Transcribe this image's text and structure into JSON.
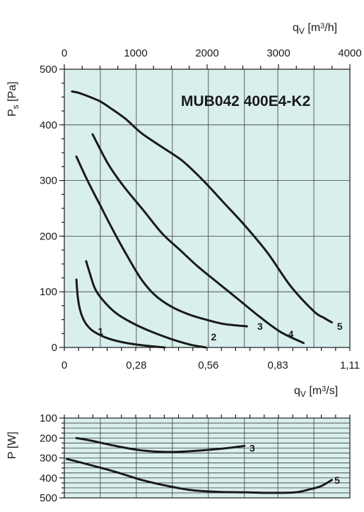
{
  "colors": {
    "plot_background": "#d9efee",
    "curve": "#1a1a1a"
  },
  "top_axis": {
    "label_main": "q",
    "label_sub": "V",
    "label_unit_pre": " [m",
    "label_unit_sup": "3",
    "label_unit_post": "/h]",
    "ticks": [
      "0",
      "1000",
      "2000",
      "3000",
      "4000"
    ],
    "max": 4000
  },
  "chart_data": [
    {
      "type": "line",
      "title": "MUB042 400E4-K2",
      "xlabel": "q_V [m3/s]",
      "ylabel": "P_s [Pa]",
      "x_tick_labels": [
        "0",
        "0,28",
        "0,56",
        "0,83",
        "1,11"
      ],
      "y_tick_labels": [
        "0",
        "100",
        "200",
        "300",
        "400",
        "500"
      ],
      "xlim": [
        0,
        1.11
      ],
      "ylim": [
        0,
        500
      ],
      "grid": true,
      "series": [
        {
          "name": "1",
          "x": [
            0.047,
            0.052,
            0.06,
            0.07,
            0.085,
            0.11,
            0.16,
            0.22,
            0.3,
            0.39
          ],
          "y": [
            122,
            92,
            70,
            55,
            42,
            30,
            18,
            10,
            4,
            0
          ]
        },
        {
          "name": "2",
          "x": [
            0.085,
            0.1,
            0.12,
            0.15,
            0.2,
            0.26,
            0.33,
            0.41,
            0.49,
            0.55
          ],
          "y": [
            155,
            132,
            105,
            85,
            62,
            45,
            30,
            16,
            5,
            0
          ]
        },
        {
          "name": "3",
          "x": [
            0.047,
            0.09,
            0.14,
            0.19,
            0.25,
            0.3,
            0.35,
            0.41,
            0.48,
            0.55,
            0.61,
            0.66,
            0.71
          ],
          "y": [
            343,
            300,
            255,
            210,
            160,
            122,
            95,
            75,
            60,
            50,
            43,
            40,
            38
          ]
        },
        {
          "name": "4",
          "x": [
            0.11,
            0.17,
            0.23,
            0.31,
            0.38,
            0.45,
            0.52,
            0.6,
            0.68,
            0.76,
            0.84,
            0.93
          ],
          "y": [
            383,
            330,
            290,
            245,
            205,
            175,
            145,
            115,
            85,
            55,
            28,
            8
          ]
        },
        {
          "name": "5",
          "x": [
            0.03,
            0.06,
            0.1,
            0.14,
            0.18,
            0.24,
            0.3,
            0.38,
            0.46,
            0.54,
            0.62,
            0.7,
            0.79,
            0.88,
            0.97,
            1.01,
            1.04
          ],
          "y": [
            460,
            457,
            450,
            442,
            430,
            410,
            385,
            360,
            335,
            300,
            260,
            220,
            170,
            110,
            65,
            53,
            45
          ]
        }
      ],
      "point_labels": [
        "1",
        "2",
        "3",
        "4",
        "5"
      ]
    },
    {
      "type": "line",
      "xlabel": "",
      "ylabel": "P [W]",
      "y_tick_labels": [
        "100",
        "200",
        "300",
        "400",
        "500"
      ],
      "xlim": [
        0,
        1.11
      ],
      "ylim": [
        100,
        500
      ],
      "y_reversed": true,
      "grid": true,
      "series": [
        {
          "name": "3",
          "x": [
            0.047,
            0.1,
            0.2,
            0.3,
            0.4,
            0.5,
            0.6,
            0.7
          ],
          "y": [
            200,
            212,
            240,
            262,
            270,
            265,
            255,
            240
          ]
        },
        {
          "name": "5",
          "x": [
            0.01,
            0.1,
            0.2,
            0.3,
            0.4,
            0.5,
            0.6,
            0.7,
            0.8,
            0.9,
            0.96,
            1.0,
            1.04
          ],
          "y": [
            305,
            335,
            370,
            410,
            440,
            462,
            470,
            472,
            475,
            472,
            455,
            440,
            410
          ]
        }
      ],
      "point_labels": [
        "3",
        "5"
      ]
    }
  ]
}
